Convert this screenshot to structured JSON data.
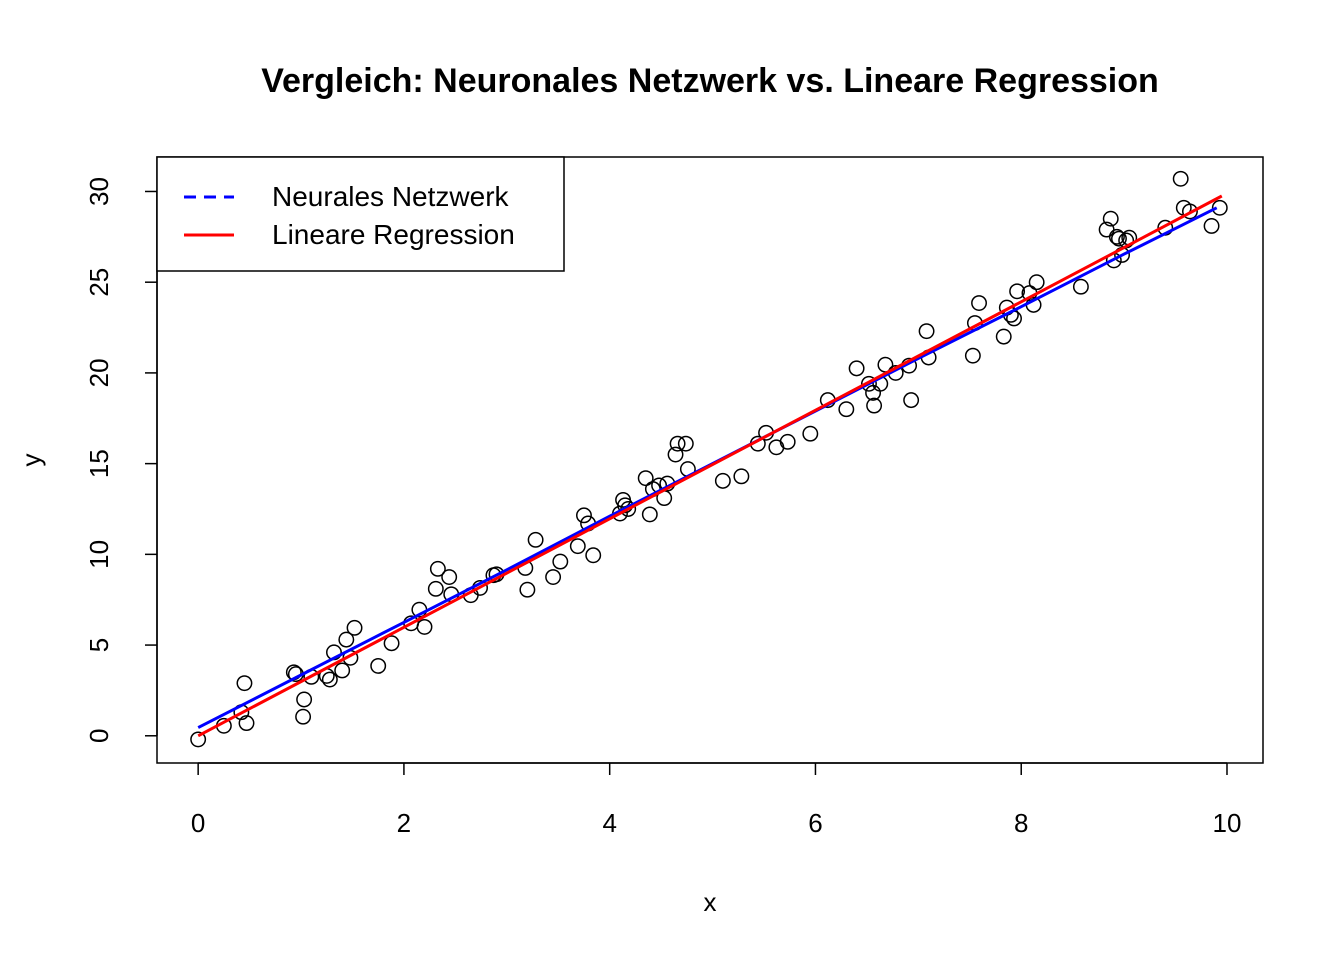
{
  "chart_data": {
    "type": "scatter",
    "title": "Vergleich: Neuronales Netzwerk vs. Lineare Regression",
    "xlabel": "x",
    "ylabel": "y",
    "xlim": [
      -0.4,
      10.35
    ],
    "ylim": [
      -1.5,
      31.9
    ],
    "x_ticks": [
      0,
      2,
      4,
      6,
      8,
      10
    ],
    "y_ticks": [
      0,
      5,
      10,
      15,
      20,
      25,
      30
    ],
    "grid": false,
    "legend": {
      "position": "top-left",
      "entries": [
        {
          "label": "Neurales Netzwerk",
          "color": "#0000ff",
          "style": "dashed"
        },
        {
          "label": "Lineare Regression",
          "color": "#ff0000",
          "style": "solid"
        }
      ]
    },
    "lines": [
      {
        "name": "Neurales Netzwerk",
        "color": "#0000ff",
        "x": [
          0,
          1,
          2,
          3,
          4,
          5,
          6,
          7,
          8,
          9,
          9.9
        ],
        "y": [
          0.45,
          3.35,
          6.25,
          9.15,
          12.1,
          15.0,
          17.9,
          20.8,
          23.65,
          26.55,
          29.1
        ]
      },
      {
        "name": "Lineare Regression",
        "color": "#ff0000",
        "x": [
          0,
          9.95
        ],
        "y": [
          0.0,
          29.75
        ]
      }
    ],
    "points": {
      "x": [
        0.0,
        0.25,
        0.42,
        0.45,
        0.47,
        0.93,
        0.95,
        1.02,
        1.03,
        1.1,
        1.25,
        1.28,
        1.32,
        1.4,
        1.44,
        1.48,
        1.52,
        1.75,
        1.88,
        2.07,
        2.15,
        2.2,
        2.31,
        2.33,
        2.44,
        2.46,
        2.65,
        2.74,
        2.87,
        2.9,
        3.18,
        3.2,
        3.28,
        3.45,
        3.52,
        3.69,
        3.75,
        3.79,
        3.84,
        4.1,
        4.13,
        4.15,
        4.18,
        4.35,
        4.39,
        4.42,
        4.48,
        4.53,
        4.56,
        4.64,
        4.66,
        4.74,
        4.76,
        5.1,
        5.28,
        5.44,
        5.52,
        5.62,
        5.73,
        5.95,
        6.12,
        6.3,
        6.4,
        6.52,
        6.56,
        6.57,
        6.63,
        6.68,
        6.78,
        6.91,
        6.93,
        7.08,
        7.1,
        7.53,
        7.55,
        7.59,
        7.83,
        7.86,
        7.9,
        7.93,
        7.96,
        8.08,
        8.12,
        8.15,
        8.58,
        8.83,
        8.87,
        8.9,
        8.93,
        8.95,
        8.98,
        9.02,
        9.05,
        9.4,
        9.55,
        9.58,
        9.64,
        9.85,
        9.93
      ],
      "y": [
        -0.2,
        0.55,
        1.3,
        2.9,
        0.7,
        3.5,
        3.4,
        1.05,
        2.0,
        3.25,
        3.3,
        3.1,
        4.6,
        3.6,
        5.3,
        4.3,
        5.95,
        3.85,
        5.1,
        6.2,
        6.95,
        6.0,
        8.1,
        9.2,
        8.75,
        7.8,
        7.75,
        8.15,
        8.85,
        8.9,
        9.25,
        8.05,
        10.8,
        8.75,
        9.6,
        10.45,
        12.15,
        11.7,
        9.95,
        12.25,
        13.0,
        12.7,
        12.5,
        14.2,
        12.2,
        13.6,
        13.8,
        13.1,
        13.9,
        15.5,
        16.1,
        16.1,
        14.7,
        14.05,
        14.3,
        16.1,
        16.7,
        15.9,
        16.2,
        16.65,
        18.5,
        18.0,
        20.25,
        19.4,
        18.9,
        18.2,
        19.4,
        20.45,
        20.0,
        20.4,
        18.5,
        22.3,
        20.85,
        20.95,
        22.75,
        23.85,
        22.0,
        23.6,
        23.2,
        23.0,
        24.5,
        24.4,
        23.75,
        25.0,
        24.75,
        27.9,
        28.5,
        26.2,
        27.5,
        27.4,
        26.5,
        27.3,
        27.45,
        28.0,
        30.7,
        29.1,
        28.9,
        28.1,
        29.1
      ]
    },
    "colors": {
      "points": "#000000",
      "frame": "#000000"
    }
  }
}
